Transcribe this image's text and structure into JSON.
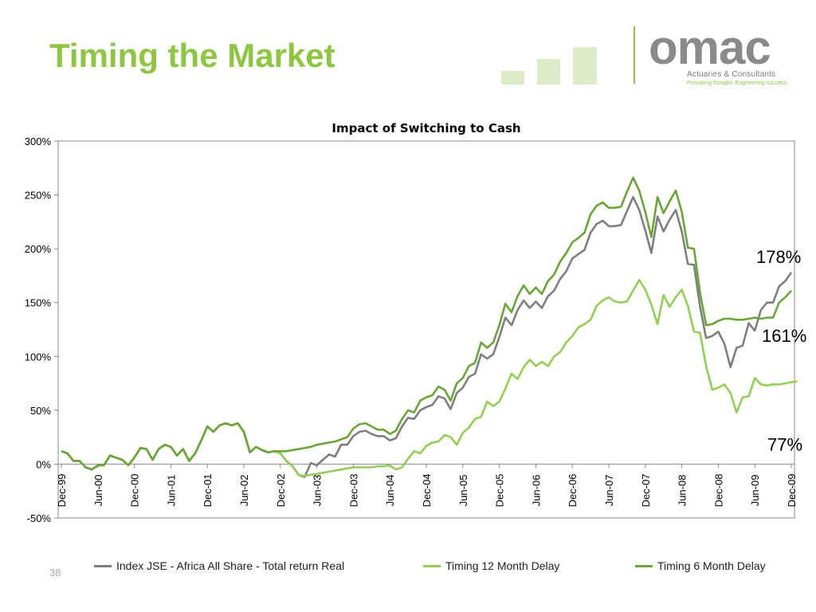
{
  "slide": {
    "title": "Timing the Market",
    "page_number": "38"
  },
  "logo": {
    "name": "omac",
    "tagline": "Actuaries & Consultants",
    "slogan": "Provoking thought. Engineering success."
  },
  "colors": {
    "title": "#8dc63f",
    "index_series": "#7f7f7f",
    "timing12_series": "#92d050",
    "timing6_series": "#6aa632",
    "deco": "#dcecc8"
  },
  "chart_data": {
    "type": "line",
    "title": "Impact of Switching to Cash",
    "xlabel": "",
    "ylabel": "",
    "ylim": [
      -50,
      300
    ],
    "y_unit": "%",
    "yticks": [
      "300%",
      "250%",
      "200%",
      "150%",
      "100%",
      "50%",
      "0%",
      "-50%"
    ],
    "xticks": [
      "Dec-99",
      "Jun-00",
      "Dec-00",
      "Jun-01",
      "Dec-01",
      "Jun-02",
      "Dec-02",
      "Jun-03",
      "Dec-03",
      "Jun-04",
      "Dec-04",
      "Jun-05",
      "Dec-05",
      "Jun-06",
      "Dec-06",
      "Jun-07",
      "Dec-07",
      "Jun-08",
      "Dec-08",
      "Jun-09",
      "Dec-09"
    ],
    "x_start": "Dec-99",
    "x_end": "Dec-09",
    "x_step": "month",
    "grid": false,
    "legend_position": "bottom",
    "series": [
      {
        "name": "Index JSE - Africa All Share - Total return Real",
        "color": "#7f7f7f",
        "values": [
          12,
          10,
          3,
          3,
          -3,
          -5,
          -1,
          -1,
          8,
          6,
          4,
          -1,
          6,
          15,
          14,
          4,
          14,
          18,
          16,
          8,
          14,
          3,
          10,
          22,
          35,
          30,
          36,
          38,
          36,
          38,
          30,
          11,
          16,
          13,
          11,
          12,
          10,
          3,
          -2,
          -10,
          -12,
          1,
          -1,
          4,
          9,
          7,
          18,
          18,
          26,
          30,
          31,
          28,
          26,
          26,
          22,
          24,
          35,
          43,
          42,
          50,
          53,
          55,
          63,
          61,
          51,
          66,
          71,
          81,
          84,
          102,
          98,
          102,
          118,
          136,
          129,
          143,
          152,
          145,
          151,
          145,
          156,
          161,
          172,
          179,
          191,
          195,
          199,
          215,
          223,
          226,
          221,
          221,
          222,
          235,
          248,
          236,
          217,
          196,
          230,
          216,
          227,
          236,
          216,
          186,
          185,
          146,
          117,
          119,
          123,
          112,
          90,
          108,
          110,
          131,
          124,
          143,
          150,
          150,
          165,
          170,
          178
        ]
      },
      {
        "name": "Timing 12 Month Delay",
        "color": "#92d050",
        "values": [
          12,
          10,
          3,
          3,
          -3,
          -5,
          -1,
          -1,
          8,
          6,
          4,
          -1,
          6,
          15,
          14,
          4,
          14,
          18,
          16,
          8,
          14,
          3,
          10,
          22,
          35,
          30,
          36,
          38,
          36,
          38,
          30,
          11,
          16,
          13,
          11,
          12,
          10,
          3,
          -2,
          -10,
          -11,
          -10,
          -9,
          -8,
          -7,
          -6,
          -5,
          -4,
          -3,
          -3,
          -3,
          -3,
          -2,
          -2,
          -1,
          -5,
          -3,
          5,
          12,
          10,
          17,
          20,
          21,
          27,
          25,
          18,
          29,
          34,
          42,
          44,
          58,
          54,
          58,
          70,
          84,
          79,
          90,
          97,
          91,
          95,
          91,
          100,
          104,
          113,
          119,
          127,
          130,
          134,
          147,
          152,
          155,
          151,
          150,
          151,
          161,
          171,
          162,
          148,
          130,
          157,
          146,
          155,
          162,
          147,
          123,
          122,
          91,
          69,
          71,
          74,
          66,
          48,
          62,
          63,
          80,
          74,
          73,
          74,
          74,
          75,
          76,
          77
        ]
      },
      {
        "name": "Timing 6 Month Delay",
        "color": "#6aa632",
        "values": [
          12,
          10,
          3,
          3,
          -3,
          -5,
          -1,
          -1,
          8,
          6,
          4,
          -1,
          6,
          15,
          14,
          4,
          14,
          18,
          16,
          8,
          14,
          3,
          10,
          22,
          35,
          30,
          36,
          38,
          36,
          38,
          30,
          11,
          16,
          13,
          11,
          12,
          12,
          12,
          13,
          14,
          15,
          16,
          18,
          19,
          20,
          21,
          23,
          25,
          33,
          37,
          38,
          35,
          32,
          32,
          28,
          31,
          42,
          50,
          48,
          59,
          62,
          64,
          72,
          69,
          59,
          75,
          80,
          91,
          94,
          113,
          108,
          113,
          129,
          149,
          141,
          156,
          166,
          158,
          164,
          158,
          170,
          176,
          188,
          196,
          206,
          210,
          215,
          232,
          240,
          243,
          238,
          238,
          239,
          253,
          266,
          254,
          234,
          211,
          248,
          233,
          244,
          254,
          234,
          201,
          200,
          159,
          129,
          130,
          133,
          135,
          135,
          134,
          134,
          135,
          136,
          135,
          136,
          136,
          150,
          155,
          161
        ]
      }
    ],
    "annotations": [
      {
        "text": "178%",
        "series": 0
      },
      {
        "text": "161%",
        "series": 2
      },
      {
        "text": "77%",
        "series": 1
      }
    ]
  }
}
